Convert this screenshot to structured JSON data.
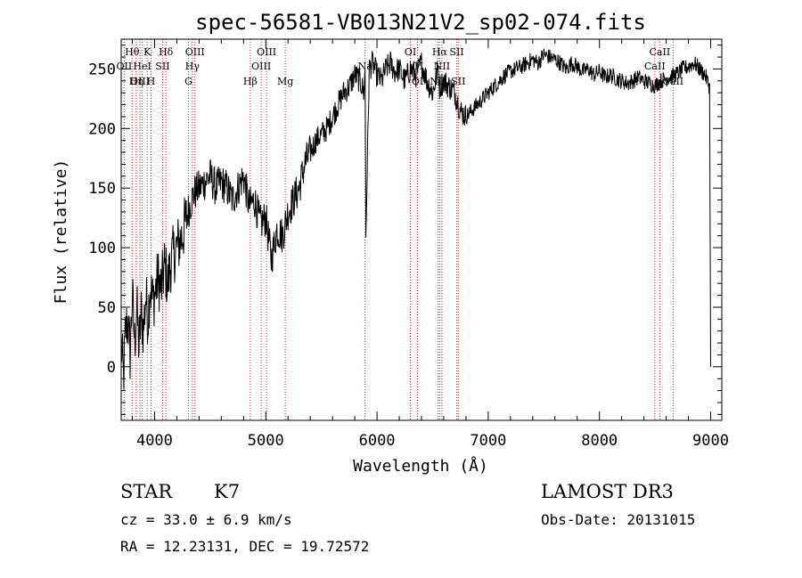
{
  "chart_data": {
    "type": "line",
    "title": "spec-56581-VB013N21V2_sp02-074.fits",
    "xlabel": "Wavelength (Å)",
    "ylabel": "Flux (relative)",
    "xlim": [
      3700,
      9100
    ],
    "ylim": [
      -45,
      275
    ],
    "x_ticks": [
      4000,
      5000,
      6000,
      7000,
      8000,
      9000
    ],
    "y_ticks": [
      0,
      50,
      100,
      150,
      200,
      250
    ],
    "grid": false,
    "series": [
      {
        "x": [
          3700,
          3720,
          3740,
          3760,
          3780,
          3800,
          3820,
          3840,
          3860,
          3880,
          3900,
          3920,
          3940,
          3960,
          3980,
          4000,
          4030,
          4060,
          4090,
          4120,
          4150,
          4200,
          4250,
          4300,
          4350,
          4400,
          4450,
          4500,
          4550,
          4600,
          4650,
          4700,
          4750,
          4800,
          4850,
          4900,
          4950,
          5000,
          5050,
          5100,
          5150,
          5200,
          5250,
          5300,
          5350,
          5400,
          5450,
          5500,
          5550,
          5600,
          5650,
          5700,
          5750,
          5800,
          5850,
          5880,
          5893,
          5900,
          5930,
          5960,
          6000,
          6040,
          6080,
          6120,
          6160,
          6200,
          6250,
          6300,
          6350,
          6400,
          6450,
          6500,
          6550,
          6563,
          6600,
          6650,
          6700,
          6750,
          6800,
          6850,
          6900,
          6950,
          7000,
          7050,
          7100,
          7150,
          7200,
          7250,
          7300,
          7350,
          7400,
          7450,
          7500,
          7550,
          7600,
          7650,
          7700,
          7750,
          7800,
          7850,
          7900,
          7950,
          8000,
          8050,
          8100,
          8150,
          8200,
          8250,
          8300,
          8350,
          8400,
          8450,
          8500,
          8550,
          8600,
          8650,
          8700,
          8750,
          8800,
          8850,
          8900,
          8950,
          8990,
          9000
        ],
        "y": [
          20,
          -10,
          30,
          40,
          10,
          60,
          20,
          50,
          15,
          45,
          30,
          60,
          40,
          70,
          55,
          60,
          75,
          65,
          85,
          70,
          90,
          100,
          110,
          130,
          145,
          150,
          155,
          160,
          150,
          155,
          150,
          140,
          150,
          160,
          135,
          140,
          120,
          125,
          90,
          115,
          110,
          130,
          140,
          150,
          170,
          180,
          190,
          195,
          200,
          210,
          220,
          230,
          235,
          245,
          240,
          230,
          248,
          110,
          250,
          255,
          245,
          240,
          250,
          255,
          248,
          250,
          240,
          250,
          245,
          255,
          240,
          230,
          250,
          235,
          240,
          235,
          230,
          215,
          210,
          215,
          220,
          225,
          230,
          235,
          240,
          245,
          248,
          250,
          252,
          255,
          258,
          255,
          262,
          260,
          258,
          255,
          250,
          255,
          252,
          248,
          250,
          245,
          248,
          243,
          245,
          242,
          240,
          238,
          240,
          243,
          240,
          238,
          236,
          240,
          242,
          244,
          246,
          250,
          252,
          255,
          250,
          245,
          235,
          0
        ]
      }
    ],
    "lines": [
      {
        "name": "Hθ",
        "x": 3798,
        "row": 1
      },
      {
        "name": "OII",
        "x": 3727,
        "row": 2
      },
      {
        "name": "OIII",
        "x": 3869,
        "row": 3
      },
      {
        "name": "K",
        "x": 3934,
        "row": 1
      },
      {
        "name": "HeI",
        "x": 3889,
        "row": 2
      },
      {
        "name": "Hη",
        "x": 3835,
        "row": 3
      },
      {
        "name": "Hδ",
        "x": 4102,
        "row": 1
      },
      {
        "name": "SII",
        "x": 4072,
        "row": 2
      },
      {
        "name": "H",
        "x": 3968,
        "row": 3
      },
      {
        "name": "OIII",
        "x": 4363,
        "row": 1
      },
      {
        "name": "Hγ",
        "x": 4340,
        "row": 2
      },
      {
        "name": "G",
        "x": 4305,
        "row": 3
      },
      {
        "name": "OIII",
        "x": 5007,
        "row": 1
      },
      {
        "name": "OIII",
        "x": 4959,
        "row": 2
      },
      {
        "name": "Hβ",
        "x": 4861,
        "row": 3
      },
      {
        "name": "Mg",
        "x": 5175,
        "row": 3
      },
      {
        "name": "Na",
        "x": 5893,
        "row": 2
      },
      {
        "name": "OI",
        "x": 6300,
        "row": 1
      },
      {
        "name": "OI",
        "x": 6364,
        "row": 2
      },
      {
        "name": "OI",
        "x": 6364,
        "row": 3
      },
      {
        "name": "Hα",
        "x": 6563,
        "row": 1
      },
      {
        "name": "SII",
        "x": 6717,
        "row": 1
      },
      {
        "name": "NII",
        "x": 6584,
        "row": 2
      },
      {
        "name": "NII",
        "x": 6548,
        "row": 3
      },
      {
        "name": "SII",
        "x": 6731,
        "row": 3
      },
      {
        "name": "CaII",
        "x": 8542,
        "row": 1
      },
      {
        "name": "CaII",
        "x": 8498,
        "row": 2
      },
      {
        "name": "CaII",
        "x": 8662,
        "row": 3
      }
    ]
  },
  "footer": {
    "object_class": "STAR",
    "subclass": "K7",
    "redshift": "cz = 33.0 ± 6.9 km/s",
    "coords": "RA =  12.23131, DEC =  19.72572",
    "survey": "LAMOST DR3",
    "obs_date": "Obs-Date: 20131015"
  }
}
